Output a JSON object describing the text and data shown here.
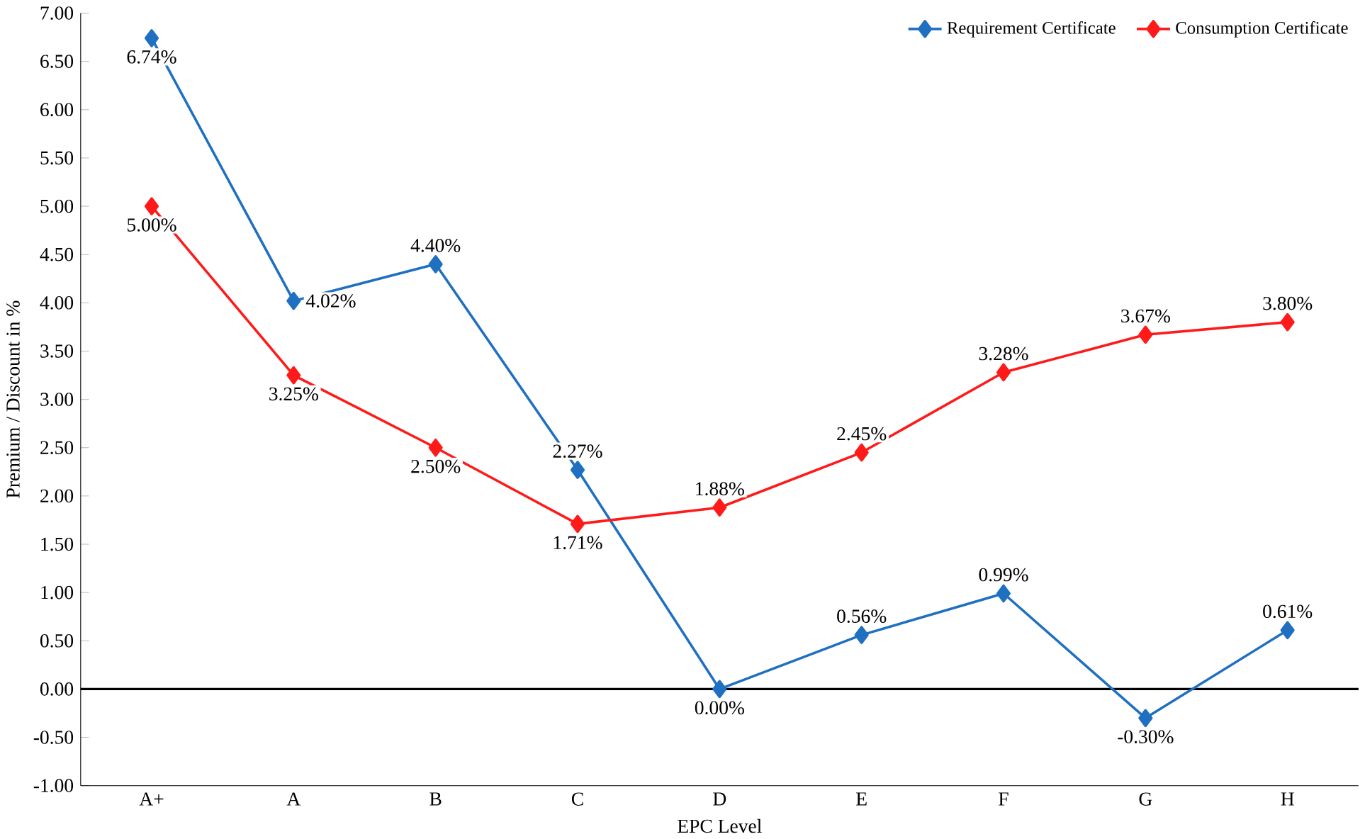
{
  "chart_data": {
    "type": "line",
    "xlabel": "EPC Level",
    "ylabel": "Premium / Discount in %",
    "categories": [
      "A+",
      "A",
      "B",
      "C",
      "D",
      "E",
      "F",
      "G",
      "H"
    ],
    "series": [
      {
        "name": "Requirement Certificate",
        "color": "#1f70c1",
        "values": [
          6.74,
          4.02,
          4.4,
          2.27,
          0.0,
          0.56,
          0.99,
          -0.3,
          0.61
        ],
        "value_labels": [
          "6.74%",
          "4.02%",
          "4.40%",
          "2.27%",
          "0.00%",
          "0.56%",
          "0.99%",
          "-0.30%",
          "0.61%"
        ]
      },
      {
        "name": "Consumption Certificate",
        "color": "#ff1a1a",
        "values": [
          5.0,
          3.25,
          2.5,
          1.71,
          1.88,
          2.45,
          3.28,
          3.67,
          3.8
        ],
        "value_labels": [
          "5.00%",
          "3.25%",
          "2.50%",
          "1.71%",
          "1.88%",
          "2.45%",
          "3.28%",
          "3.67%",
          "3.80%"
        ]
      }
    ],
    "ylim": [
      -1,
      7
    ],
    "yticks": [
      {
        "value": -1,
        "label": "-1.00"
      },
      {
        "value": -0.5,
        "label": "-0.50"
      },
      {
        "value": 0,
        "label": "0.00"
      },
      {
        "value": 0.5,
        "label": "0.50"
      },
      {
        "value": 1,
        "label": "1.00"
      },
      {
        "value": 1.5,
        "label": "1.50"
      },
      {
        "value": 2,
        "label": "2.00"
      },
      {
        "value": 2.5,
        "label": "2.50"
      },
      {
        "value": 3,
        "label": "3.00"
      },
      {
        "value": 3.5,
        "label": "3.50"
      },
      {
        "value": 4,
        "label": "4.00"
      },
      {
        "value": 4.5,
        "label": "4.50"
      },
      {
        "value": 5,
        "label": "5.00"
      },
      {
        "value": 5.5,
        "label": "5.50"
      },
      {
        "value": 6,
        "label": "6.00"
      },
      {
        "value": 6.5,
        "label": "6.50"
      },
      {
        "value": 7,
        "label": "7.00"
      }
    ],
    "ref_lines": [
      {
        "axis": "y",
        "value": 0,
        "color": "#000000"
      }
    ],
    "legend": "top right",
    "marker": "diamond",
    "line_style": "solid",
    "grid": false
  }
}
